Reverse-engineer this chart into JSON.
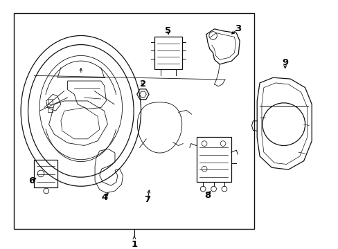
{
  "bg_color": "#ffffff",
  "line_color": "#111111",
  "fig_width": 4.89,
  "fig_height": 3.6,
  "dpi": 100,
  "label_fontsize": 9.5
}
